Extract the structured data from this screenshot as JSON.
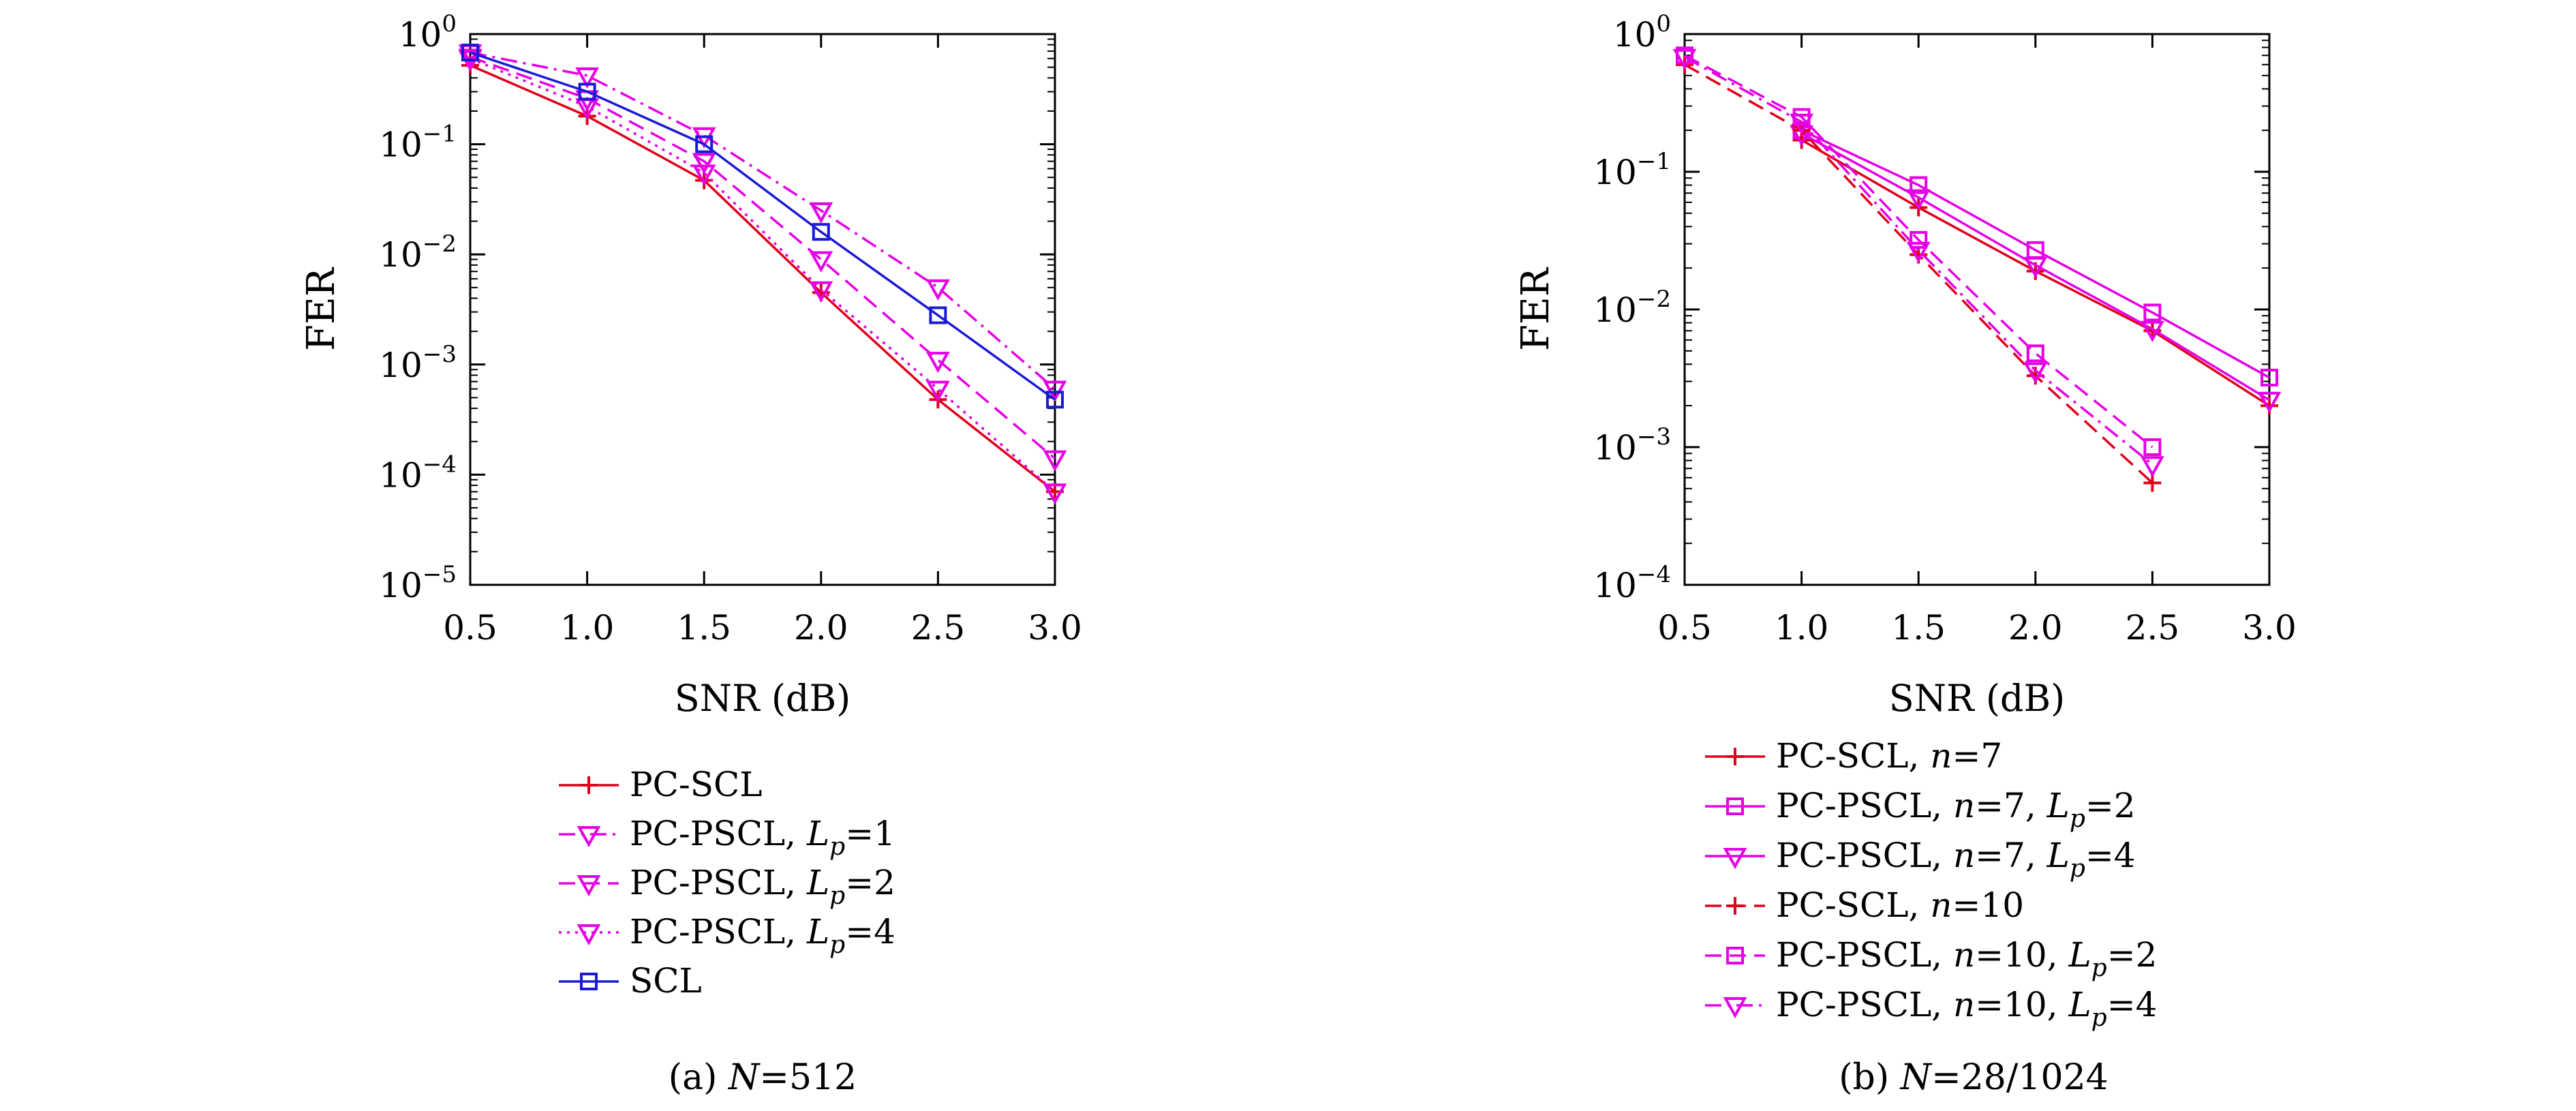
{
  "chart_data": [
    {
      "type": "line",
      "caption": "(a) N=512",
      "caption_parts": {
        "prefix": "(a) ",
        "var": "N",
        "suffix": "=512"
      },
      "xlabel": "SNR (dB)",
      "ylabel": "FER",
      "yscale": "log",
      "xlim": [
        0.5,
        3.0
      ],
      "ylim": [
        1e-05,
        1
      ],
      "x_ticks": [
        "0.5",
        "1.0",
        "1.5",
        "2.0",
        "2.5",
        "3.0"
      ],
      "y_tick_exponents": [
        "0",
        "−1",
        "−2",
        "−3",
        "−4",
        "−5"
      ],
      "y_tick_base": "10",
      "grid": false,
      "legend_position": "below",
      "x": [
        0.5,
        1.0,
        1.5,
        2.0,
        2.5,
        3.0
      ],
      "series": [
        {
          "legend": {
            "text": "PC-SCL"
          },
          "color": "#e0001b",
          "dash": "solid",
          "marker": "plus",
          "values": [
            0.52,
            0.18,
            0.047,
            0.0045,
            0.00048,
            7e-05
          ]
        },
        {
          "legend": {
            "text": "PC-PSCL, ",
            "var": "L",
            "sub": "p",
            "after": "=1"
          },
          "color": "#e600e6",
          "dash": "dashdot",
          "marker": "triangle-down",
          "values": [
            0.68,
            0.42,
            0.12,
            0.025,
            0.005,
            0.0006
          ]
        },
        {
          "legend": {
            "text": "PC-PSCL, ",
            "var": "L",
            "sub": "p",
            "after": "=2"
          },
          "color": "#e600e6",
          "dash": "dashed",
          "marker": "triangle-down",
          "values": [
            0.62,
            0.26,
            0.07,
            0.009,
            0.0011,
            0.00014
          ]
        },
        {
          "legend": {
            "text": "PC-PSCL, ",
            "var": "L",
            "sub": "p",
            "after": "=4"
          },
          "color": "#e600e6",
          "dash": "dotted",
          "marker": "triangle-down",
          "values": [
            0.6,
            0.22,
            0.055,
            0.0048,
            0.0006,
            7e-05
          ]
        },
        {
          "legend": {
            "text": "SCL"
          },
          "color": "#1a1ad6",
          "dash": "solid",
          "marker": "square",
          "values": [
            0.68,
            0.3,
            0.1,
            0.016,
            0.0028,
            0.00048
          ]
        }
      ]
    },
    {
      "type": "line",
      "caption": "(b) N=28/1024",
      "caption_parts": {
        "prefix": "(b) ",
        "var": "N",
        "suffix": "=28/1024"
      },
      "xlabel": "SNR (dB)",
      "ylabel": "FER",
      "yscale": "log",
      "xlim": [
        0.5,
        3.0
      ],
      "ylim": [
        0.0001,
        1
      ],
      "x_ticks": [
        "0.5",
        "1.0",
        "1.5",
        "2.0",
        "2.5",
        "3.0"
      ],
      "y_tick_exponents": [
        "0",
        "−1",
        "−2",
        "−3",
        "−4"
      ],
      "y_tick_base": "10",
      "grid": false,
      "legend_position": "below",
      "x": [
        0.5,
        1.0,
        1.5,
        2.0,
        2.5,
        3.0
      ],
      "series": [
        {
          "legend": {
            "text": "PC-SCL, ",
            "var2": "n",
            "after2": "=7"
          },
          "color": "#e0001b",
          "dash": "solid",
          "marker": "plus",
          "values": [
            null,
            0.17,
            0.055,
            0.019,
            0.007,
            0.002
          ]
        },
        {
          "legend": {
            "text": "PC-PSCL, ",
            "var2": "n",
            "after2": "=7, ",
            "var": "L",
            "sub": "p",
            "after": "=2"
          },
          "color": "#e600e6",
          "dash": "solid",
          "marker": "square",
          "values": [
            null,
            0.2,
            0.08,
            0.027,
            0.0095,
            0.0032
          ]
        },
        {
          "legend": {
            "text": "PC-PSCL, ",
            "var2": "n",
            "after2": "=7, ",
            "var": "L",
            "sub": "p",
            "after": "=4"
          },
          "color": "#e600e6",
          "dash": "solid",
          "marker": "triangle-down",
          "values": [
            null,
            0.19,
            0.065,
            0.021,
            0.0072,
            0.0022
          ]
        },
        {
          "legend": {
            "text": "PC-SCL, ",
            "var2": "n",
            "after2": "=10"
          },
          "color": "#e0001b",
          "dash": "dashed",
          "marker": "plus",
          "values": [
            0.6,
            0.2,
            0.025,
            0.0033,
            0.00055,
            null
          ]
        },
        {
          "legend": {
            "text": "PC-PSCL, ",
            "var2": "n",
            "after2": "=10, ",
            "var": "L",
            "sub": "p",
            "after": "=2"
          },
          "color": "#e600e6",
          "dash": "dashed",
          "marker": "square",
          "values": [
            0.7,
            0.25,
            0.032,
            0.0048,
            0.001,
            null
          ]
        },
        {
          "legend": {
            "text": "PC-PSCL, ",
            "var2": "n",
            "after2": "=10, ",
            "var": "L",
            "sub": "p",
            "after": "=4"
          },
          "color": "#e600e6",
          "dash": "dashdot",
          "marker": "triangle-down",
          "values": [
            0.68,
            0.23,
            0.027,
            0.0036,
            0.00075,
            null
          ]
        }
      ]
    }
  ]
}
